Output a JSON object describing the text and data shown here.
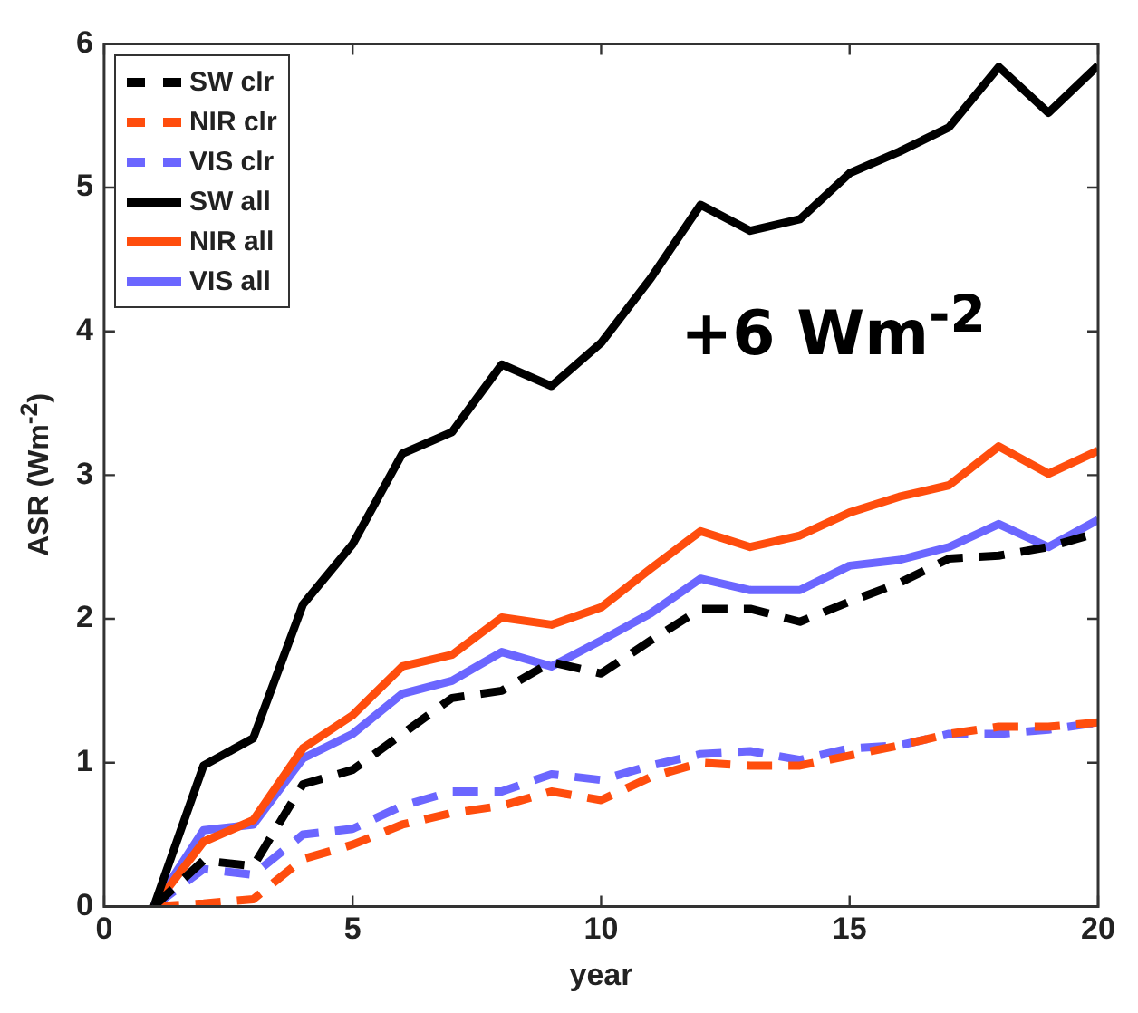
{
  "chart_data": {
    "type": "line",
    "xlabel": "year",
    "ylabel": "ASR (Wm$^{-2}$)",
    "x": [
      1,
      2,
      3,
      4,
      5,
      6,
      7,
      8,
      9,
      10,
      11,
      12,
      13,
      14,
      15,
      16,
      17,
      18,
      19,
      20
    ],
    "xlim": [
      0,
      20
    ],
    "xticks": [
      0,
      5,
      10,
      15,
      20
    ],
    "ylim": [
      0,
      6
    ],
    "yticks": [
      0,
      1,
      2,
      3,
      4,
      5,
      6
    ],
    "grid": false,
    "legend": "top left",
    "marker": "none",
    "annotations": [
      "+6 Wm$^{-2}$"
    ],
    "series": [
      {
        "name": "SW clr",
        "color": "#000000",
        "line_style": "dashed",
        "values": [
          0,
          0.32,
          0.28,
          0.85,
          0.95,
          1.2,
          1.45,
          1.5,
          1.7,
          1.62,
          1.85,
          2.07,
          2.07,
          1.98,
          2.12,
          2.25,
          2.42,
          2.44,
          2.5,
          2.6
        ]
      },
      {
        "name": "NIR clr",
        "color": "#ff4d0d",
        "line_style": "dashed",
        "values": [
          0,
          0.02,
          0.05,
          0.33,
          0.43,
          0.57,
          0.65,
          0.7,
          0.8,
          0.74,
          0.9,
          1.0,
          0.98,
          0.98,
          1.05,
          1.12,
          1.2,
          1.25,
          1.25,
          1.28
        ]
      },
      {
        "name": "VIS clr",
        "color": "#6b66ff",
        "line_style": "dashed",
        "values": [
          0,
          0.26,
          0.22,
          0.5,
          0.54,
          0.7,
          0.8,
          0.8,
          0.92,
          0.88,
          0.98,
          1.06,
          1.08,
          1.02,
          1.1,
          1.12,
          1.2,
          1.2,
          1.23,
          1.28
        ]
      },
      {
        "name": "SW all",
        "color": "#000000",
        "line_style": "solid",
        "values": [
          0,
          0.98,
          1.17,
          2.1,
          2.52,
          3.15,
          3.3,
          3.77,
          3.62,
          3.92,
          4.37,
          4.88,
          4.7,
          4.78,
          5.1,
          5.25,
          5.42,
          5.84,
          5.52,
          5.85
        ]
      },
      {
        "name": "NIR all",
        "color": "#ff4d0d",
        "line_style": "solid",
        "values": [
          0,
          0.45,
          0.6,
          1.1,
          1.33,
          1.67,
          1.75,
          2.01,
          1.96,
          2.08,
          2.35,
          2.61,
          2.5,
          2.58,
          2.74,
          2.85,
          2.93,
          3.2,
          3.01,
          3.17
        ]
      },
      {
        "name": "VIS all",
        "color": "#6b66ff",
        "line_style": "solid",
        "values": [
          0,
          0.53,
          0.57,
          1.03,
          1.2,
          1.48,
          1.57,
          1.77,
          1.67,
          1.85,
          2.04,
          2.28,
          2.2,
          2.2,
          2.37,
          2.41,
          2.5,
          2.66,
          2.5,
          2.69
        ]
      }
    ]
  }
}
